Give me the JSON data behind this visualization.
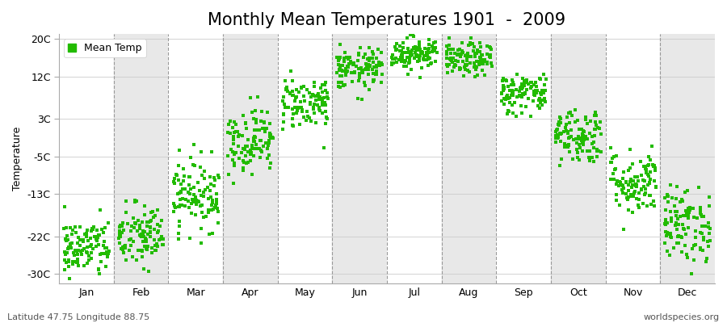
{
  "title": "Monthly Mean Temperatures 1901  -  2009",
  "ylabel": "Temperature",
  "yticks": [
    -30,
    -22,
    -13,
    -5,
    3,
    12,
    20
  ],
  "ytick_labels": [
    "-30C",
    "-22C",
    "-13C",
    "-5C",
    "3C",
    "12C",
    "20C"
  ],
  "ylim": [
    -32,
    21
  ],
  "months": [
    "Jan",
    "Feb",
    "Mar",
    "Apr",
    "May",
    "Jun",
    "Jul",
    "Aug",
    "Sep",
    "Oct",
    "Nov",
    "Dec"
  ],
  "dot_color": "#22bb00",
  "background_color": "#ffffff",
  "plot_bg_color": "#ffffff",
  "alt_band_color": "#e8e8e8",
  "footer_left": "Latitude 47.75 Longitude 88.75",
  "footer_right": "worldspecies.org",
  "legend_label": "Mean Temp",
  "title_fontsize": 15,
  "label_fontsize": 9,
  "tick_fontsize": 9,
  "mean_temps": [
    -24.5,
    -22.0,
    -13.0,
    -1.5,
    6.5,
    13.5,
    17.0,
    15.5,
    8.5,
    -0.5,
    -10.5,
    -19.5
  ],
  "std_temps": [
    3.2,
    3.5,
    3.8,
    3.5,
    2.8,
    2.2,
    1.8,
    1.8,
    2.2,
    3.0,
    3.5,
    4.0
  ],
  "n_years": 109
}
